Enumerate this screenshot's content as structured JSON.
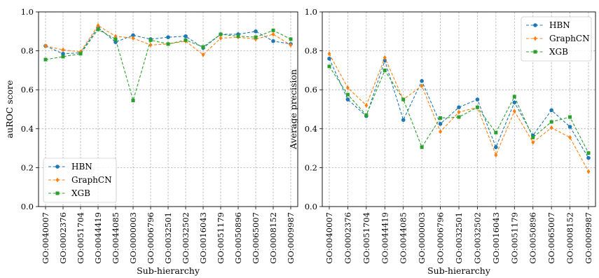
{
  "chart_data": [
    {
      "type": "line",
      "title": "",
      "xlabel": "Sub-hierarchy",
      "ylabel": "auROC score",
      "ylim": [
        0.0,
        1.0
      ],
      "yticks": [
        "0.0",
        "0.2",
        "0.4",
        "0.6",
        "0.8",
        "1.0"
      ],
      "grid": true,
      "legend_position": "bottom-left",
      "categories": [
        "GO:0040007",
        "GO:0002376",
        "GO:0051704",
        "GO:0044419",
        "GO:0044085",
        "GO:0000003",
        "GO:0006796",
        "GO:0032501",
        "GO:0032502",
        "GO:0016043",
        "GO:0051179",
        "GO:0050896",
        "GO:0065007",
        "GO:0008152",
        "GO:0009987"
      ],
      "series": [
        {
          "name": "HBN",
          "color": "#1f77b4",
          "marker": "circle",
          "values": [
            0.825,
            0.785,
            0.79,
            0.92,
            0.845,
            0.88,
            0.86,
            0.87,
            0.875,
            0.815,
            0.885,
            0.885,
            0.9,
            0.85,
            0.835
          ]
        },
        {
          "name": "GraphCN",
          "color": "#ff7f0e",
          "marker": "diamond",
          "values": [
            0.825,
            0.805,
            0.795,
            0.93,
            0.875,
            0.865,
            0.83,
            0.835,
            0.85,
            0.78,
            0.865,
            0.87,
            0.86,
            0.885,
            0.83
          ]
        },
        {
          "name": "XGB",
          "color": "#2ca02c",
          "marker": "square",
          "values": [
            0.755,
            0.77,
            0.785,
            0.91,
            0.86,
            0.545,
            0.855,
            0.835,
            0.855,
            0.82,
            0.885,
            0.875,
            0.87,
            0.905,
            0.86
          ]
        }
      ]
    },
    {
      "type": "line",
      "title": "",
      "xlabel": "Sub-hierarchy",
      "ylabel": "Average precision",
      "ylim": [
        0.0,
        1.0
      ],
      "yticks": [
        "0.0",
        "0.2",
        "0.4",
        "0.6",
        "0.8",
        "1.0"
      ],
      "grid": true,
      "legend_position": "top-right",
      "categories": [
        "GO:0040007",
        "GO:0002376",
        "GO:0051704",
        "GO:0044419",
        "GO:0044085",
        "GO:0000003",
        "GO:0006796",
        "GO:0032501",
        "GO:0032502",
        "GO:0016043",
        "GO:0051179",
        "GO:0050896",
        "GO:0065007",
        "GO:0008152",
        "GO:0009987"
      ],
      "series": [
        {
          "name": "HBN",
          "color": "#1f77b4",
          "marker": "circle",
          "values": [
            0.76,
            0.55,
            0.465,
            0.75,
            0.445,
            0.645,
            0.425,
            0.51,
            0.55,
            0.305,
            0.535,
            0.365,
            0.495,
            0.41,
            0.25
          ]
        },
        {
          "name": "GraphCN",
          "color": "#ff7f0e",
          "marker": "diamond",
          "values": [
            0.785,
            0.61,
            0.52,
            0.765,
            0.55,
            0.62,
            0.385,
            0.485,
            0.51,
            0.265,
            0.49,
            0.33,
            0.405,
            0.355,
            0.18
          ]
        },
        {
          "name": "XGB",
          "color": "#2ca02c",
          "marker": "square",
          "values": [
            0.72,
            0.575,
            0.47,
            0.7,
            0.55,
            0.305,
            0.455,
            0.46,
            0.51,
            0.38,
            0.565,
            0.355,
            0.435,
            0.46,
            0.275
          ]
        }
      ]
    }
  ]
}
